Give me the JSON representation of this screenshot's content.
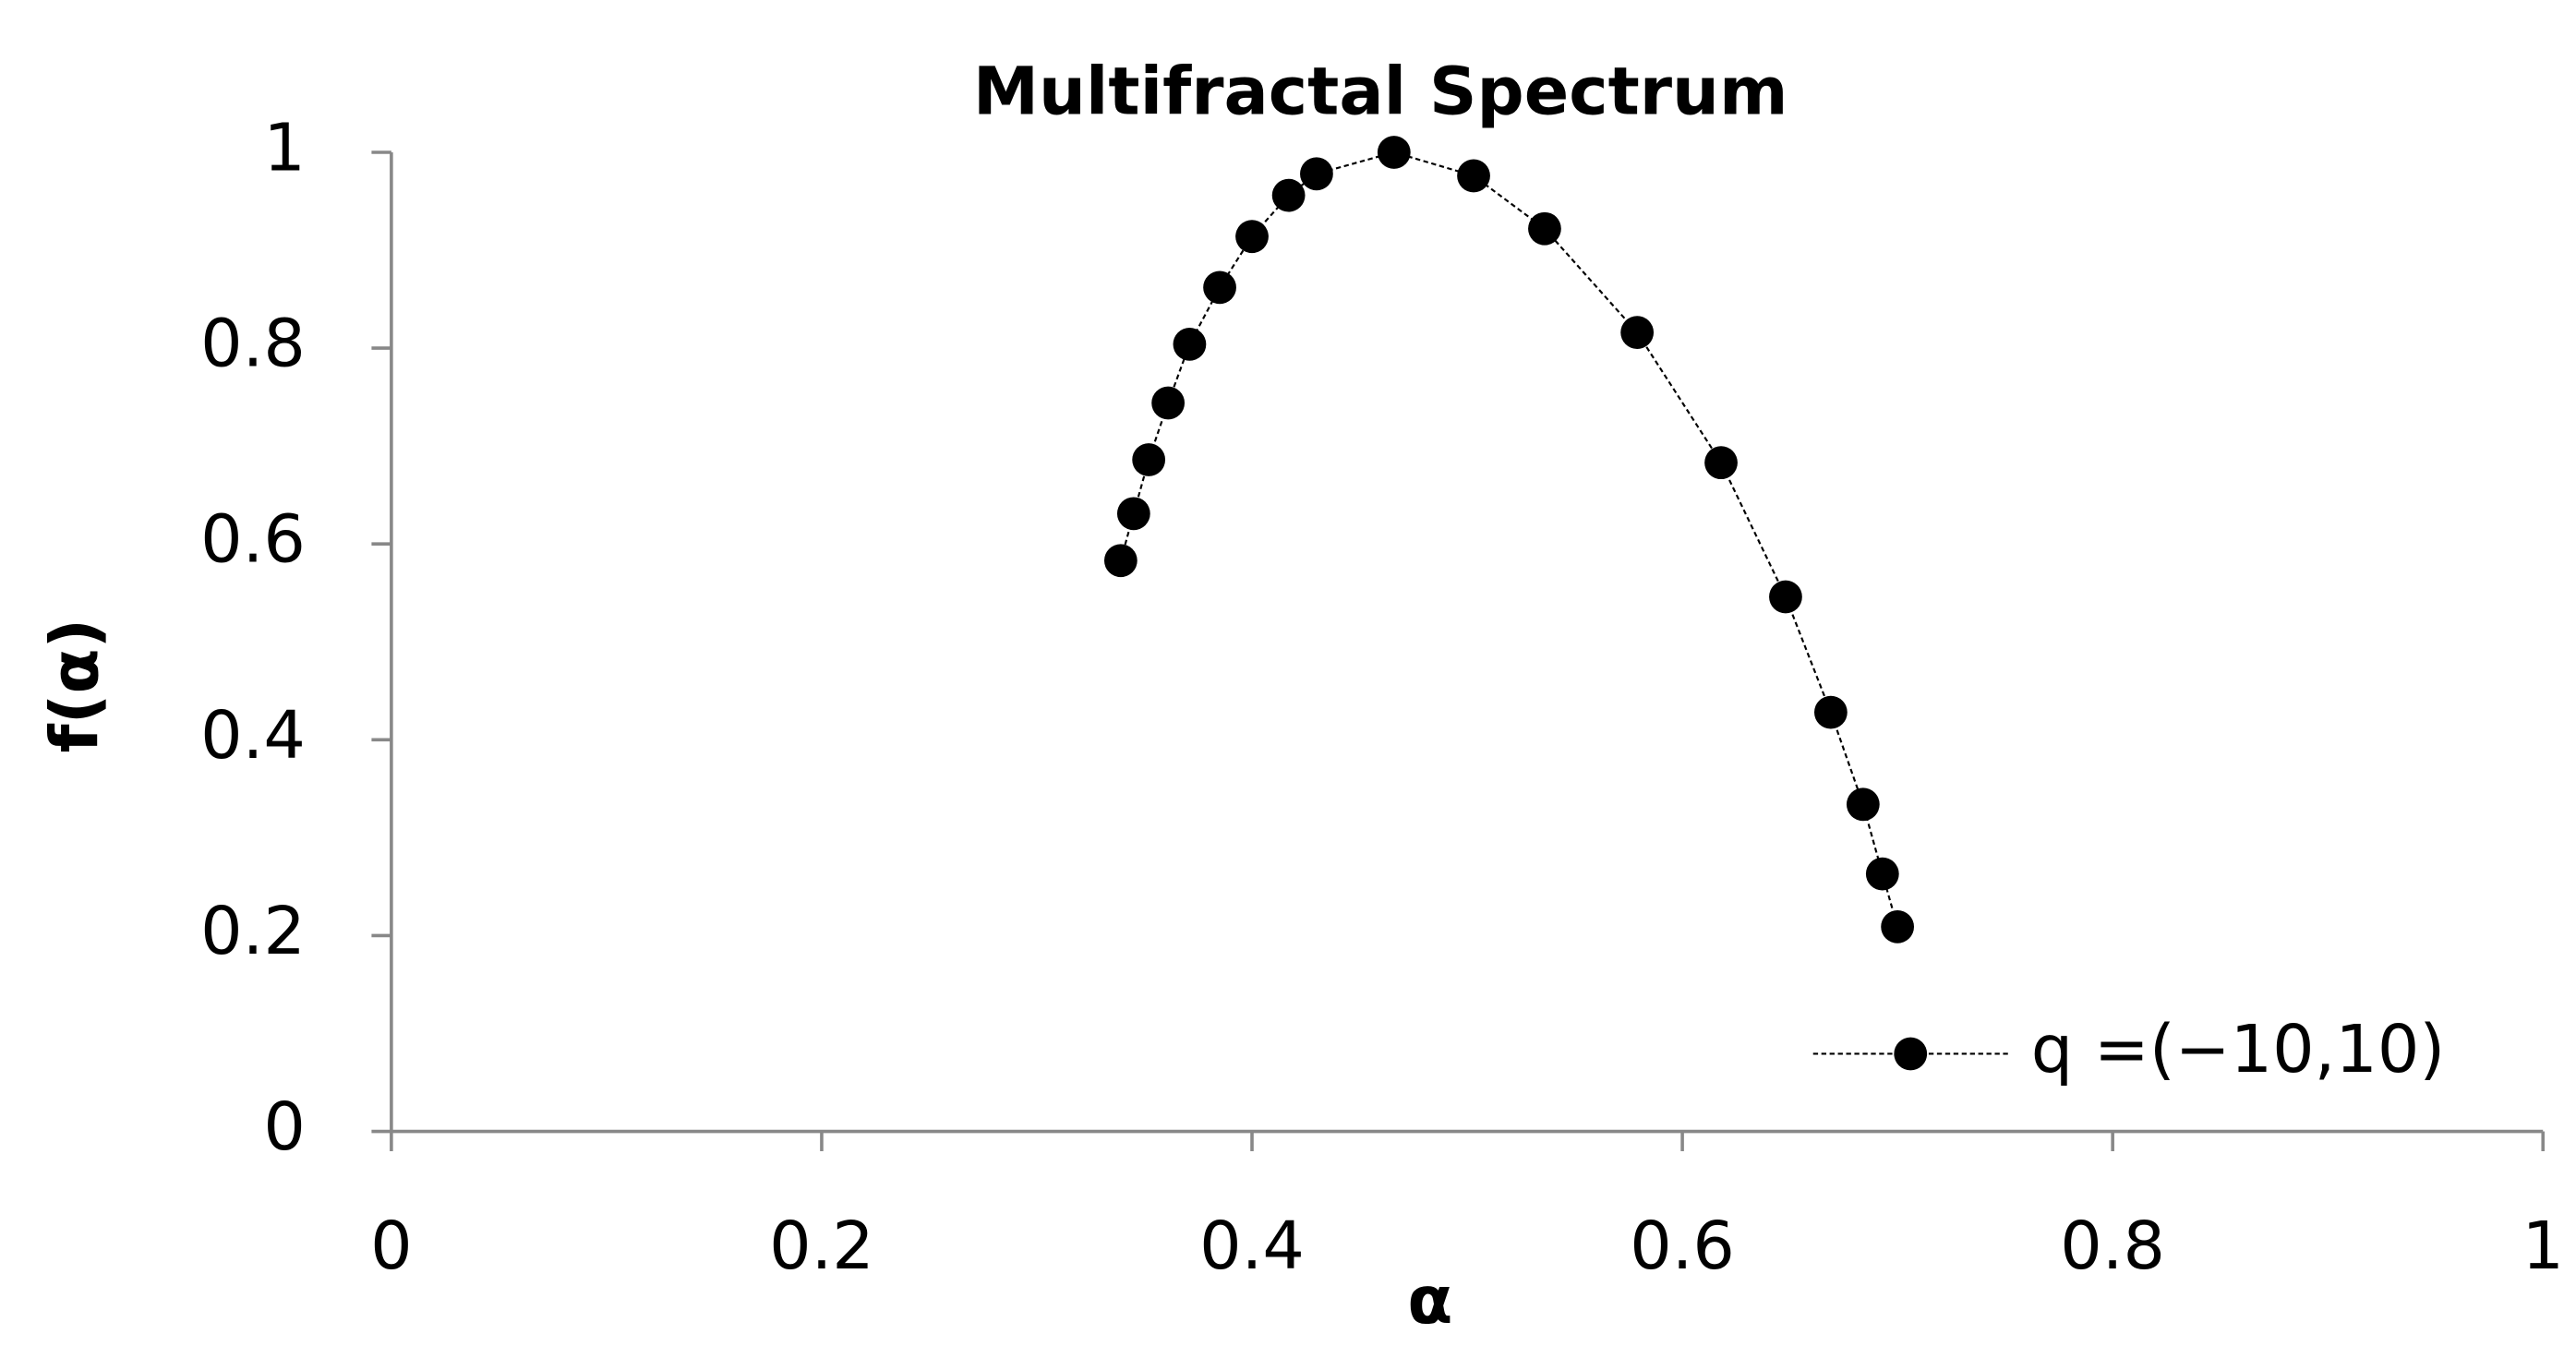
{
  "chart_data": {
    "type": "scatter",
    "title": "Multifractal Spectrum",
    "x_label": "α",
    "y_label": "f(α)",
    "x": [
      0.339,
      0.345,
      0.352,
      0.361,
      0.371,
      0.385,
      0.4,
      0.417,
      0.43,
      0.466,
      0.503,
      0.536,
      0.579,
      0.618,
      0.648,
      0.669,
      0.684,
      0.693,
      0.7
    ],
    "series": [
      {
        "name": "q =(−10,10)",
        "color": "#000000",
        "line": "dashed",
        "values": [
          0.583,
          0.631,
          0.686,
          0.744,
          0.804,
          0.862,
          0.914,
          0.956,
          0.978,
          1.0,
          0.976,
          0.922,
          0.816,
          0.683,
          0.546,
          0.428,
          0.334,
          0.263,
          0.209
        ]
      }
    ],
    "xlim": [
      0,
      1
    ],
    "xticks": [
      0,
      0.2,
      0.4,
      0.6,
      0.8,
      1
    ],
    "ylim": [
      0,
      1
    ],
    "yticks": [
      0,
      0.2,
      0.4,
      0.6,
      0.8,
      1
    ],
    "grid": false,
    "legend": "lower right"
  }
}
